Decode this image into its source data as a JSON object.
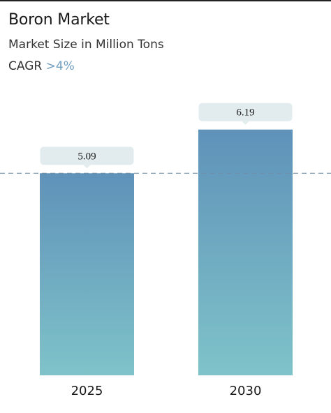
{
  "header": {
    "title": "Boron Market",
    "subtitle": "Market Size in Million Tons",
    "cagr_label": "CAGR",
    "cagr_value": ">4%"
  },
  "colors": {
    "bar_top": "#5f92b9",
    "bar_bottom": "#7fc3c9",
    "label_box": "#e2ebed",
    "reference_line": "#6f8fa8",
    "accent": "#6f9ec0"
  },
  "chart_data": {
    "type": "bar",
    "categories": [
      "2025",
      "2030"
    ],
    "values": [
      5.09,
      6.19
    ],
    "data_labels": [
      "5.09",
      "6.19"
    ],
    "ylim": [
      0,
      6.8
    ],
    "reference_line": 5.09,
    "grid": false,
    "legend": "none"
  }
}
